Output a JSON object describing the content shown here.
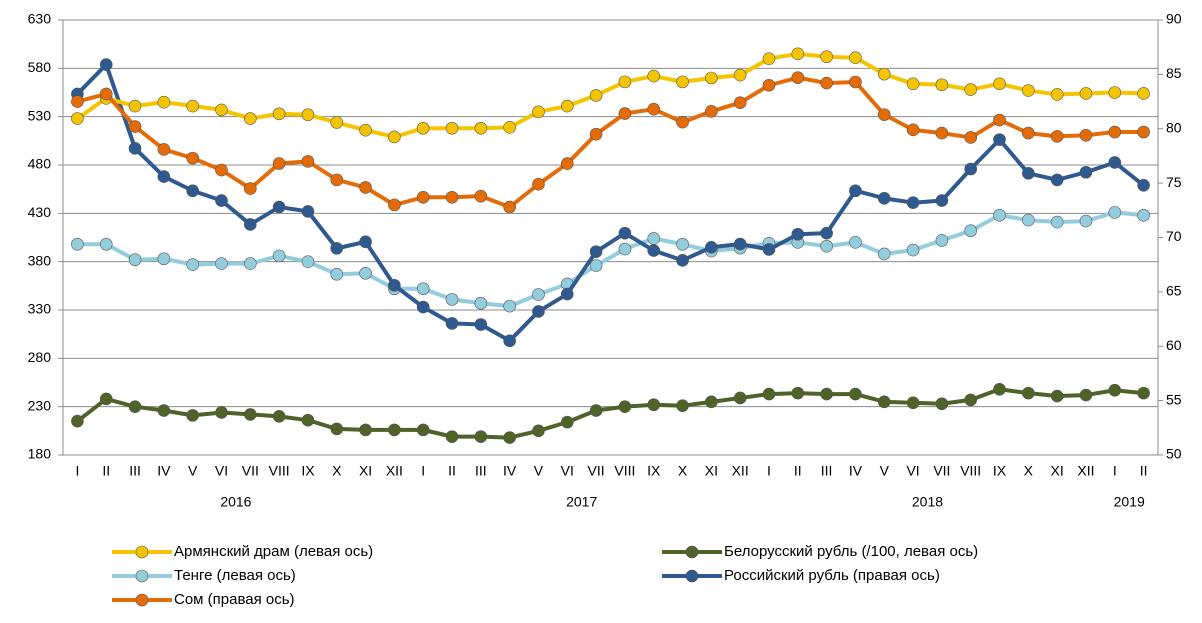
{
  "chart_data": {
    "type": "line",
    "categories": [
      "I",
      "II",
      "III",
      "IV",
      "V",
      "VI",
      "VII",
      "VIII",
      "IX",
      "X",
      "XI",
      "XII",
      "I",
      "II",
      "III",
      "IV",
      "V",
      "VI",
      "VII",
      "VIII",
      "IX",
      "X",
      "XI",
      "XII",
      "I",
      "II",
      "III",
      "IV",
      "V",
      "VI",
      "VII",
      "VIII",
      "IX",
      "X",
      "XI",
      "XII",
      "I",
      "II"
    ],
    "category_groups": [
      {
        "name": "2016",
        "count": 12
      },
      {
        "name": "2017",
        "count": 12
      },
      {
        "name": "2018",
        "count": 12
      },
      {
        "name": "2019",
        "count": 2
      }
    ],
    "ylim": [
      180,
      630
    ],
    "yticks": [
      180,
      230,
      280,
      330,
      380,
      430,
      480,
      530,
      580,
      630
    ],
    "y2lim": [
      50,
      90
    ],
    "y2ticks": [
      50,
      55,
      60,
      65,
      70,
      75,
      80,
      85,
      90
    ],
    "grid": true,
    "series": [
      {
        "name": "Армянский драм (левая ось)",
        "color": "#f5c400",
        "axis": "y",
        "values": [
          528,
          549,
          541,
          545,
          541,
          537,
          528,
          533,
          532,
          524,
          516,
          509,
          518,
          518,
          518,
          519,
          535,
          541,
          552,
          566,
          572,
          566,
          570,
          573,
          590,
          595,
          592,
          591,
          574,
          564,
          563,
          558,
          564,
          557,
          553,
          554,
          555,
          554
        ]
      },
      {
        "name": "Белорусский рубль (/100, левая ось)",
        "color": "#4f6228",
        "axis": "y",
        "values": [
          215,
          238,
          230,
          226,
          221,
          224,
          222,
          220,
          216,
          207,
          206,
          206,
          206,
          199,
          199,
          198,
          205,
          214,
          226,
          230,
          232,
          231,
          235,
          239,
          243,
          244,
          243,
          243,
          235,
          234,
          233,
          237,
          248,
          244,
          241,
          242,
          247,
          244
        ]
      },
      {
        "name": "Тенге (левая ось)",
        "color": "#93cddd",
        "axis": "y",
        "values": [
          398,
          398,
          382,
          383,
          377,
          378,
          378,
          386,
          380,
          367,
          368,
          352,
          352,
          341,
          337,
          334,
          346,
          357,
          376,
          393,
          404,
          398,
          391,
          394,
          399,
          400,
          396,
          400,
          388,
          392,
          402,
          412,
          428,
          423,
          421,
          422,
          431,
          428
        ]
      },
      {
        "name": "Российский рубль (правая ось)",
        "color": "#2f5a8f",
        "axis": "y2",
        "values": [
          83.2,
          85.9,
          78.2,
          75.6,
          74.3,
          73.4,
          71.2,
          72.8,
          72.4,
          69.0,
          69.6,
          65.6,
          63.6,
          62.1,
          62.0,
          60.5,
          63.2,
          64.8,
          68.7,
          70.4,
          68.8,
          67.9,
          69.1,
          69.4,
          68.9,
          70.3,
          70.4,
          74.3,
          73.6,
          73.2,
          73.4,
          76.3,
          79.0,
          75.9,
          75.3,
          76.0,
          76.9,
          74.8
        ]
      },
      {
        "name": "Сом (правая ось)",
        "color": "#e36c09",
        "axis": "y2",
        "values": [
          82.5,
          83.2,
          80.2,
          78.1,
          77.3,
          76.2,
          74.5,
          76.8,
          77.0,
          75.3,
          74.6,
          73.0,
          73.7,
          73.7,
          73.8,
          72.8,
          74.9,
          76.8,
          79.5,
          81.4,
          81.8,
          80.6,
          81.6,
          82.4,
          84.0,
          84.7,
          84.2,
          84.3,
          81.3,
          79.9,
          79.6,
          79.2,
          80.8,
          79.6,
          79.3,
          79.4,
          79.7,
          79.7
        ]
      }
    ]
  }
}
